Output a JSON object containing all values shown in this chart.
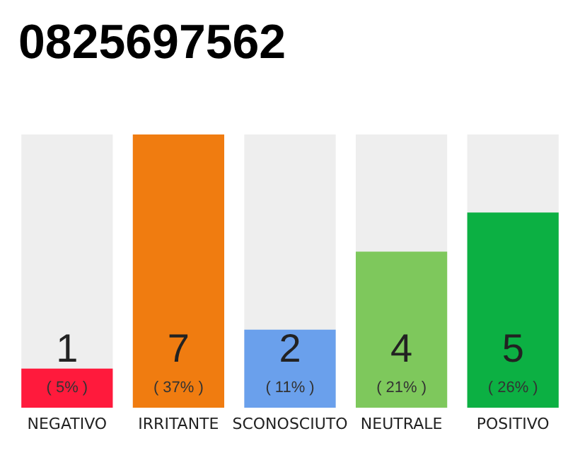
{
  "chart_data": {
    "type": "bar",
    "title": "0825697562",
    "categories": [
      "NEGATIVO",
      "IRRITANTE",
      "SCONOSCIUTO",
      "NEUTRALE",
      "POSITIVO"
    ],
    "values": [
      1,
      7,
      2,
      4,
      5
    ],
    "colors": [
      "#ff1a3c",
      "#f07c10",
      "#6aa0ec",
      "#7ec85c",
      "#0cb043"
    ],
    "value_labels": [
      "1\n( 5% )",
      "7\n( 37% )",
      "2\n( 11% )",
      "4\n( 21% )",
      "5\n( 26% )"
    ]
  }
}
